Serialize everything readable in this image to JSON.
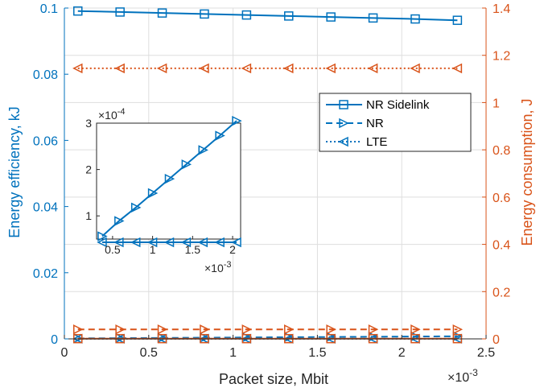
{
  "colors": {
    "blue": "#0072BD",
    "orange": "#D95319",
    "axis": "#262626",
    "grid": "#dedede"
  },
  "chart_data": {
    "type": "line",
    "xlabel": "Packet size, Mbit",
    "x_exponent": "×10",
    "x_exponent_power": "-3",
    "ylabel_left": "Energy efficiency, kJ",
    "ylabel_right": "Energy consumption, J",
    "xlim": [
      0,
      0.0025
    ],
    "ylim_left": [
      0,
      0.1
    ],
    "ylim_right": [
      0,
      1.4
    ],
    "x_ticks": [
      "0",
      "0.5",
      "1",
      "1.5",
      "2",
      "2.5"
    ],
    "y_left_ticks": [
      "0",
      "0.02",
      "0.04",
      "0.06",
      "0.08",
      "0.1"
    ],
    "y_right_ticks": [
      "0",
      "0.2",
      "0.4",
      "0.6",
      "0.8",
      "1",
      "1.2",
      "1.4"
    ],
    "grid": true,
    "legend_position": "top-right",
    "x": [
      8e-05,
      0.00033,
      0.00058,
      0.00083,
      0.00108,
      0.00133,
      0.00158,
      0.00183,
      0.00208,
      0.00233
    ],
    "series": [
      {
        "name": "NR Sidelink",
        "axis": "left",
        "marker": "square",
        "style": "solid",
        "color": "#0072BD",
        "values": [
          0.0991,
          0.0988,
          0.0985,
          0.0982,
          0.0979,
          0.0976,
          0.0973,
          0.097,
          0.0967,
          0.0963
        ]
      },
      {
        "name": "NR",
        "axis": "left",
        "marker": "triangle-right",
        "style": "dashed",
        "color": "#0072BD",
        "values": [
          0.00015,
          0.00022,
          0.00029,
          0.00036,
          0.00043,
          0.0005,
          0.00057,
          0.00064,
          0.00071,
          0.00078
        ]
      },
      {
        "name": "LTE",
        "axis": "left",
        "marker": "triangle-left",
        "style": "dotted",
        "color": "#0072BD",
        "values": [
          4e-05,
          4e-05,
          4e-05,
          4e-05,
          4e-05,
          4e-05,
          4e-05,
          4e-05,
          4e-05,
          4e-05
        ]
      },
      {
        "name": "NR Sidelink",
        "axis": "right",
        "marker": "square",
        "style": "solid",
        "color": "#D95319",
        "values": [
          0.001,
          0.001,
          0.001,
          0.001,
          0.001,
          0.001,
          0.001,
          0.001,
          0.001,
          0.001
        ]
      },
      {
        "name": "NR",
        "axis": "right",
        "marker": "triangle-right",
        "style": "dashed",
        "color": "#D95319",
        "values": [
          0.04,
          0.04,
          0.04,
          0.04,
          0.04,
          0.04,
          0.04,
          0.04,
          0.04,
          0.04
        ]
      },
      {
        "name": "LTE",
        "axis": "right",
        "marker": "triangle-left",
        "style": "dotted",
        "color": "#D95319",
        "values": [
          1.145,
          1.145,
          1.145,
          1.145,
          1.145,
          1.145,
          1.145,
          1.145,
          1.145,
          1.145
        ]
      }
    ],
    "inset": {
      "x_ticks": [
        "0.5",
        "1",
        "1.5",
        "2"
      ],
      "y_ticks": [
        "1",
        "2",
        "3"
      ],
      "y_exponent": "×10",
      "y_exponent_power": "-4",
      "x_exponent": "×10",
      "x_exponent_power": "-3",
      "xlim": [
        0.0003,
        0.0021
      ],
      "ylim": [
        5e-05,
        0.0003
      ],
      "x": [
        0.00037,
        0.00058,
        0.00079,
        0.001,
        0.00121,
        0.00142,
        0.00163,
        0.00184,
        0.00205
      ],
      "series": [
        {
          "name": "NR",
          "marker": "triangle-right",
          "style": "solid",
          "color": "#0072BD",
          "values": [
            5.6e-05,
            8.9e-05,
            0.000118,
            0.000149,
            0.00018,
            0.000211,
            0.000242,
            0.000273,
            0.000305
          ]
        },
        {
          "name": "LTE",
          "marker": "triangle-left",
          "style": "solid",
          "color": "#0072BD",
          "values": [
            4.3e-05,
            4.3e-05,
            4.3e-05,
            4.3e-05,
            4.3e-05,
            4.3e-05,
            4.3e-05,
            4.3e-05,
            4.3e-05
          ]
        }
      ]
    },
    "legend": [
      "NR Sidelink",
      "NR",
      "LTE"
    ]
  }
}
